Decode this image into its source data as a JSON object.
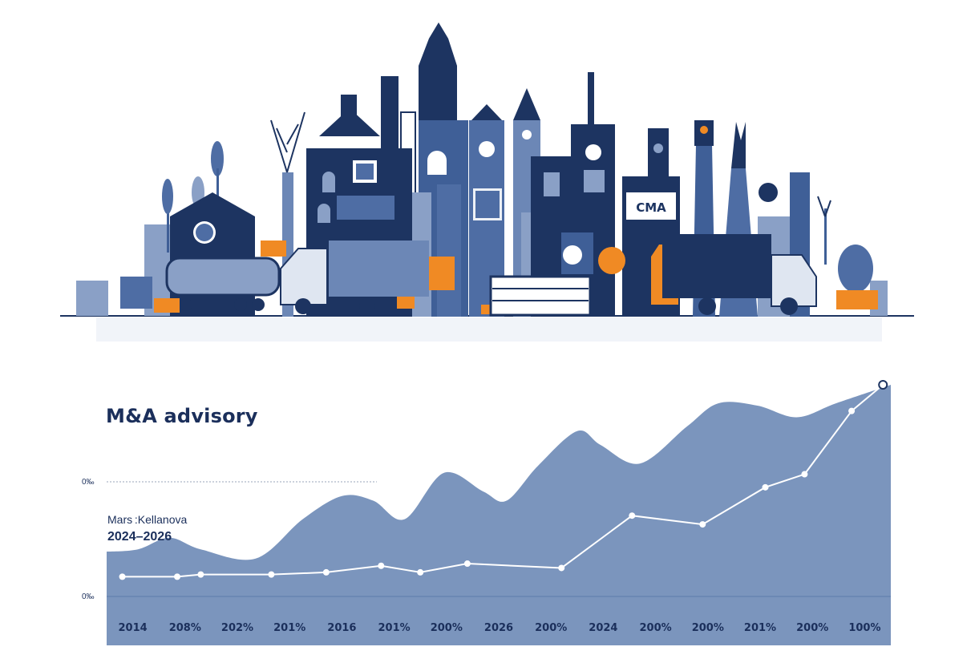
{
  "chart_data": {
    "type": "area",
    "title": "M&A advisory",
    "subtitle": "Mars :Kellanova",
    "period": "2024–2026",
    "y_tick_labels": [
      "0‰",
      "0‰"
    ],
    "x_tick_labels": [
      "2014",
      "208%",
      "202%",
      "201%",
      "2016",
      "201%",
      "200%",
      "2026",
      "200%",
      "2024",
      "200%",
      "200%",
      "201%",
      "200%",
      "100%"
    ],
    "ylim": [
      0,
      100
    ],
    "area_series": {
      "x": [
        0,
        4,
        8,
        12,
        19,
        25,
        30,
        34,
        38,
        43,
        48,
        51,
        55,
        60,
        63,
        68,
        74,
        78,
        83,
        88,
        93,
        100
      ],
      "values": [
        28,
        29,
        34,
        29,
        25,
        42,
        52,
        50,
        42,
        62,
        54,
        50,
        65,
        80,
        74,
        66,
        82,
        92,
        91,
        86,
        92,
        100
      ]
    },
    "line_series": {
      "x": [
        2,
        9,
        12,
        21,
        28,
        35,
        40,
        46,
        58,
        67,
        76,
        84,
        89,
        95,
        99
      ],
      "values": [
        12,
        12,
        13,
        13,
        14,
        17,
        14,
        18,
        16,
        40,
        36,
        53,
        59,
        88,
        100
      ]
    },
    "colors": {
      "area": "#7b95bd",
      "line": "#ffffff",
      "text": "#1b2f5b",
      "navy": "#1d3461",
      "orange": "#f08a24"
    }
  }
}
